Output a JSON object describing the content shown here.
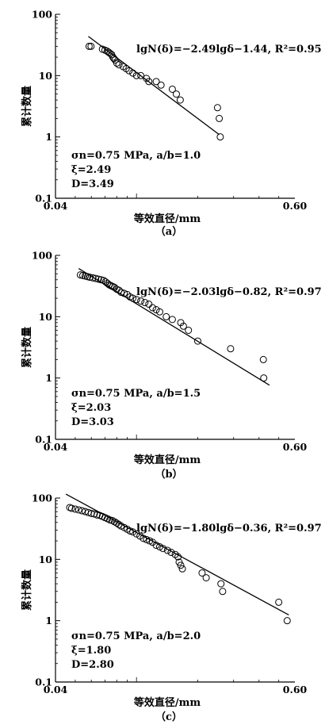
{
  "figure": {
    "ylabel": "累计数量",
    "xlabel": "等效直径/mm"
  },
  "chart_data": [
    {
      "type": "scatter",
      "caption": "（a）",
      "xlabel": "等效直径/mm",
      "ylabel": "累计数量",
      "x_scale": "log",
      "y_scale": "log",
      "xlim": [
        0.04,
        0.6
      ],
      "ylim": [
        0.1,
        100
      ],
      "x_tick_labels": [
        "0.04",
        "0.60"
      ],
      "y_tick_labels": [
        "0.1",
        "1",
        "10",
        "100"
      ],
      "fit_equation": "lgN(δ)=−2.49lgδ−1.44, R²=0.95",
      "fit": {
        "slope": -2.49,
        "intercept": -1.44,
        "x_range": [
          0.058,
          0.255
        ],
        "r2": 0.95
      },
      "annotations": [
        "σn=0.75 MPa, a/b=1.0",
        "ξ=2.49",
        "D=3.49"
      ],
      "x": [
        0.0585,
        0.0598,
        0.068,
        0.07,
        0.0718,
        0.073,
        0.0742,
        0.0755,
        0.0765,
        0.0775,
        0.0785,
        0.08,
        0.082,
        0.086,
        0.089,
        0.092,
        0.096,
        0.1,
        0.105,
        0.112,
        0.115,
        0.125,
        0.132,
        0.15,
        0.157,
        0.164,
        0.25,
        0.255,
        0.258
      ],
      "y": [
        30,
        30,
        27,
        26,
        25,
        24,
        23,
        22,
        20,
        19,
        18,
        16,
        15,
        14,
        13,
        12,
        11,
        10,
        10,
        9,
        8,
        8,
        7,
        6,
        5,
        4,
        3,
        2,
        1
      ]
    },
    {
      "type": "scatter",
      "caption": "（b）",
      "xlabel": "等效直径/mm",
      "ylabel": "累计数量",
      "x_scale": "log",
      "y_scale": "log",
      "xlim": [
        0.04,
        0.6
      ],
      "ylim": [
        0.1,
        100
      ],
      "x_tick_labels": [
        "0.04",
        "0.60"
      ],
      "y_tick_labels": [
        "0.1",
        "1",
        "10",
        "100"
      ],
      "fit_equation": "lgN(δ)=−2.03lgδ−0.82, R²=0.97",
      "fit": {
        "slope": -2.03,
        "intercept": -0.82,
        "x_range": [
          0.052,
          0.45
        ],
        "r2": 0.97
      },
      "annotations": [
        "σn=0.75 MPa, a/b=1.5",
        "ξ=2.03",
        "D=3.03"
      ],
      "x": [
        0.053,
        0.0545,
        0.056,
        0.0575,
        0.059,
        0.061,
        0.063,
        0.065,
        0.067,
        0.069,
        0.0705,
        0.072,
        0.0735,
        0.075,
        0.0765,
        0.078,
        0.08,
        0.082,
        0.084,
        0.087,
        0.09,
        0.093,
        0.096,
        0.1,
        0.105,
        0.11,
        0.115,
        0.12,
        0.125,
        0.13,
        0.14,
        0.15,
        0.165,
        0.17,
        0.18,
        0.2,
        0.29,
        0.42,
        0.422
      ],
      "y": [
        48,
        47,
        46,
        45,
        44,
        43,
        42,
        41,
        40,
        39,
        37,
        35,
        33,
        32,
        31,
        30,
        28,
        27,
        25,
        24,
        23,
        21,
        20,
        19,
        18,
        17,
        16,
        14,
        13,
        12,
        10,
        9,
        8,
        7,
        6,
        4,
        3,
        2,
        1
      ]
    },
    {
      "type": "scatter",
      "caption": "（c）",
      "xlabel": "等效直径/mm",
      "ylabel": "累计数量",
      "x_scale": "log",
      "y_scale": "log",
      "xlim": [
        0.04,
        0.6
      ],
      "ylim": [
        0.1,
        100
      ],
      "x_tick_labels": [
        "0.04",
        "0.60"
      ],
      "y_tick_labels": [
        "0.1",
        "1",
        "10",
        "100"
      ],
      "fit_equation": "lgN(δ)=−1.80lgδ−0.36, R²=0.97",
      "fit": {
        "slope": -1.8,
        "intercept": -0.36,
        "x_range": [
          0.045,
          0.56
        ],
        "r2": 0.97
      },
      "annotations": [
        "σn=0.75 MPa, a/b=2.0",
        "ξ=1.80",
        "D=2.80"
      ],
      "x": [
        0.047,
        0.048,
        0.05,
        0.052,
        0.054,
        0.056,
        0.058,
        0.06,
        0.062,
        0.064,
        0.066,
        0.068,
        0.07,
        0.072,
        0.074,
        0.076,
        0.078,
        0.08,
        0.082,
        0.084,
        0.087,
        0.09,
        0.093,
        0.096,
        0.1,
        0.104,
        0.108,
        0.112,
        0.116,
        0.12,
        0.125,
        0.13,
        0.135,
        0.142,
        0.148,
        0.155,
        0.16,
        0.162,
        0.165,
        0.168,
        0.21,
        0.22,
        0.26,
        0.265,
        0.5,
        0.55
      ],
      "y": [
        70,
        68,
        66,
        64,
        62,
        60,
        58,
        56,
        55,
        53,
        52,
        50,
        48,
        46,
        44,
        43,
        41,
        39,
        37,
        35,
        33,
        31,
        29,
        28,
        26,
        24,
        22,
        21,
        20,
        19,
        17,
        16,
        15,
        14,
        13,
        12,
        11,
        9,
        8,
        7,
        6,
        5,
        4,
        3,
        2,
        1
      ]
    }
  ]
}
